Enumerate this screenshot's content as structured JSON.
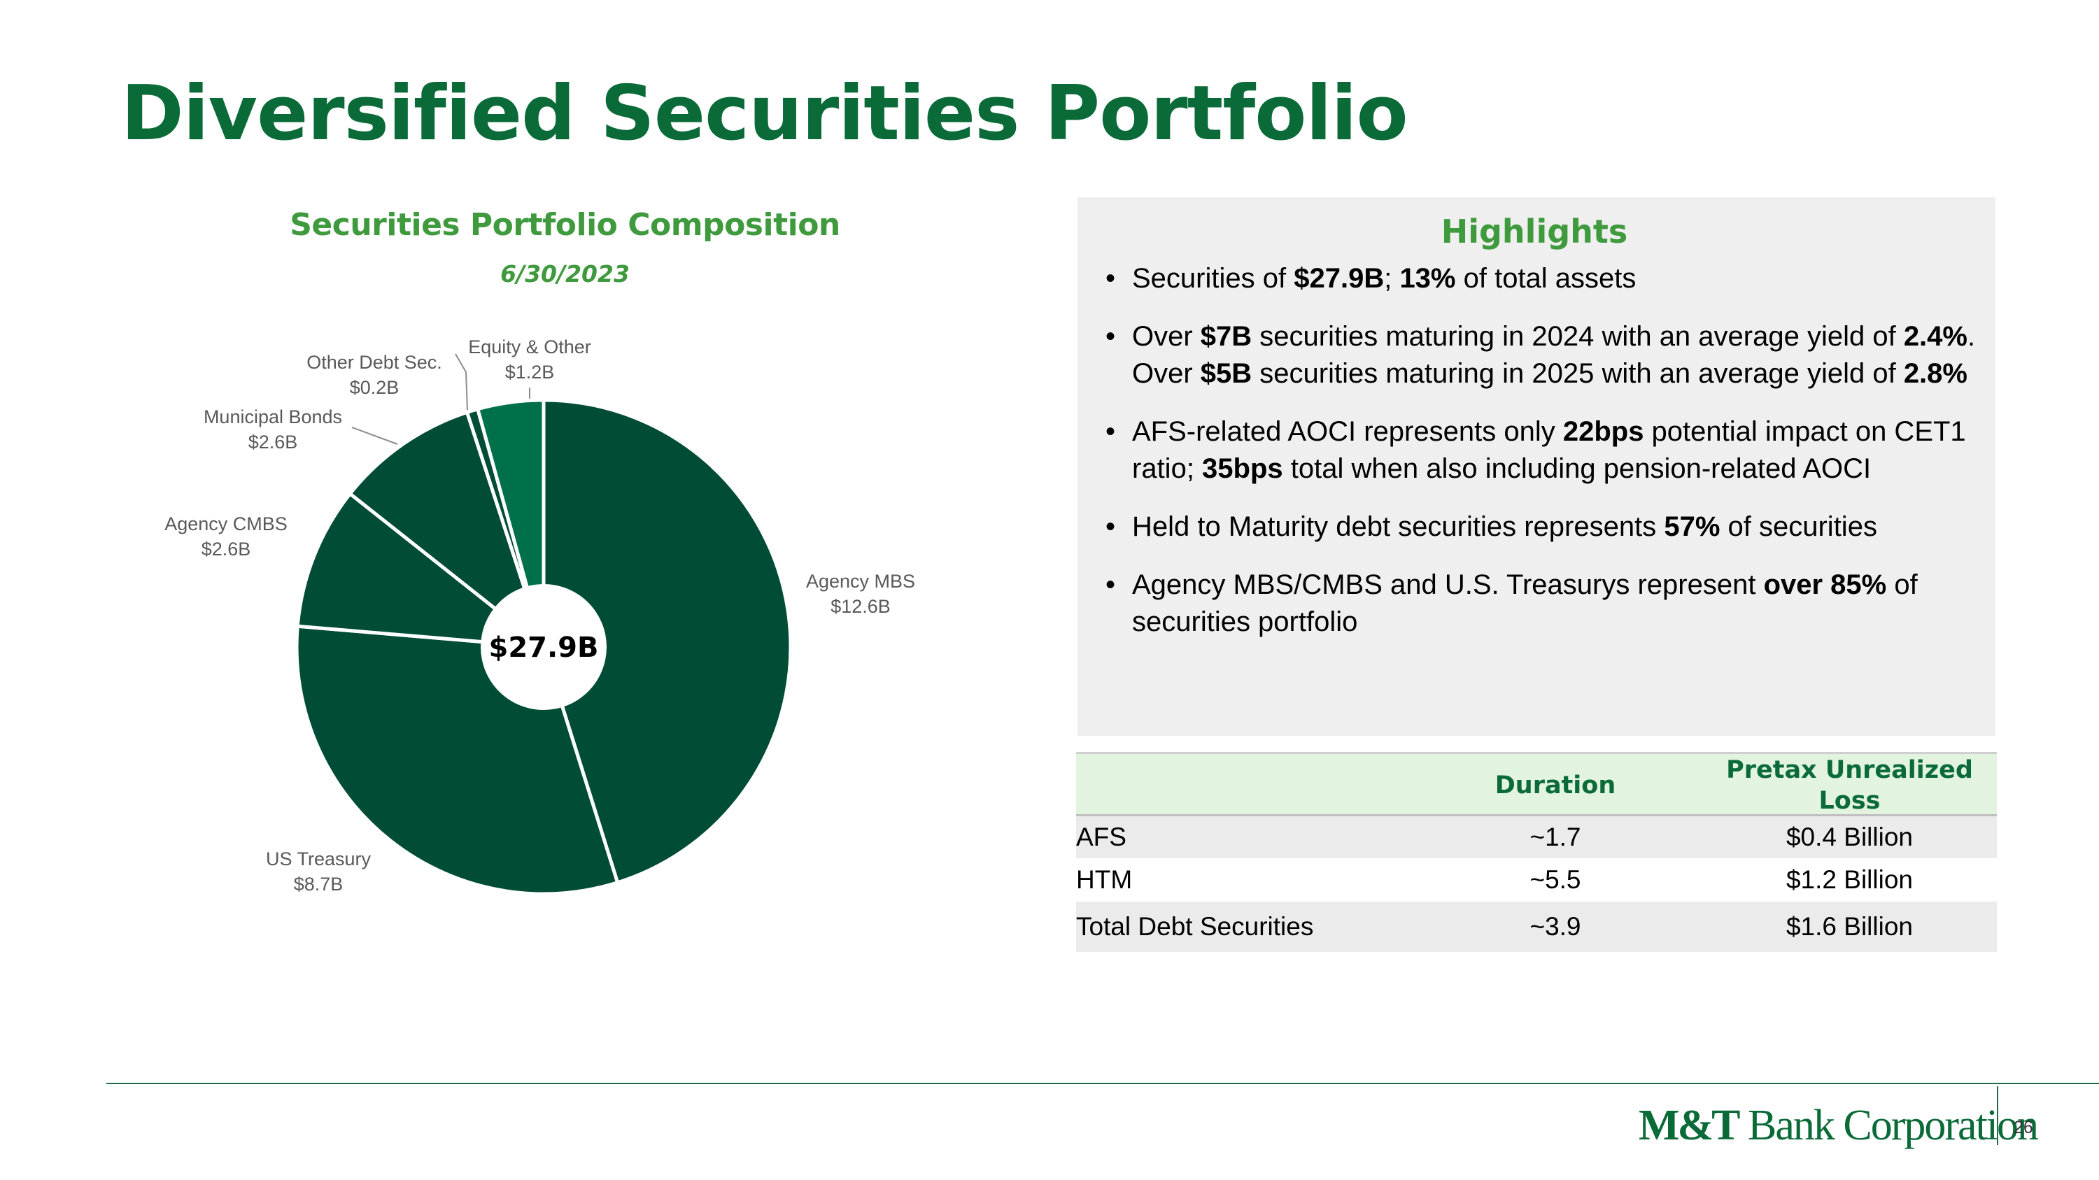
{
  "slide": {
    "title": "Diversified Securities Portfolio",
    "page_number": "26",
    "logo_text": "M&T Bank Corporation",
    "logo_bold": "M&T",
    "logo_rest": "Bank Corporation"
  },
  "chart_data": {
    "type": "pie",
    "title": "Securities Portfolio Composition",
    "subtitle": "6/30/2023",
    "center_label": "$27.9B",
    "unit": "$B",
    "slices": [
      {
        "name": "Agency MBS",
        "value": 12.6,
        "label": "$12.6B",
        "color": "#004c36"
      },
      {
        "name": "US Treasury",
        "value": 8.7,
        "label": "$8.7B",
        "color": "#004c36"
      },
      {
        "name": "Agency CMBS",
        "value": 2.6,
        "label": "$2.6B",
        "color": "#004c36"
      },
      {
        "name": "Municipal Bonds",
        "value": 2.6,
        "label": "$2.6B",
        "color": "#004c36"
      },
      {
        "name": "Other Debt Sec.",
        "value": 0.2,
        "label": "$0.2B",
        "color": "#004c36"
      },
      {
        "name": "Equity & Other",
        "value": 1.2,
        "label": "$1.2B",
        "color": "#00704a"
      }
    ]
  },
  "highlights": {
    "title": "Highlights",
    "items": [
      [
        {
          "t": "Securities of "
        },
        {
          "t": "$27.9B",
          "b": true
        },
        {
          "t": "; "
        },
        {
          "t": "13%",
          "b": true
        },
        {
          "t": " of total assets"
        }
      ],
      [
        {
          "t": "Over "
        },
        {
          "t": "$7B",
          "b": true
        },
        {
          "t": " securities maturing in 2024 with an average yield of "
        },
        {
          "t": "2.4%",
          "b": true
        },
        {
          "t": ". Over "
        },
        {
          "t": "$5B",
          "b": true
        },
        {
          "t": " securities maturing in 2025 with an average yield of "
        },
        {
          "t": "2.8%",
          "b": true
        }
      ],
      [
        {
          "t": "AFS-related AOCI represents only "
        },
        {
          "t": "22bps",
          "b": true
        },
        {
          "t": " potential impact on CET1 ratio; "
        },
        {
          "t": "35bps",
          "b": true
        },
        {
          "t": " total when also including pension-related AOCI"
        }
      ],
      [
        {
          "t": "Held to Maturity debt securities represents "
        },
        {
          "t": "57%",
          "b": true
        },
        {
          "t": " of securities"
        }
      ],
      [
        {
          "t": "Agency MBS/CMBS and U.S. Treasurys represent "
        },
        {
          "t": "over 85%",
          "b": true
        },
        {
          "t": " of securities portfolio"
        }
      ]
    ]
  },
  "table": {
    "headers": [
      "",
      "Duration",
      "Pretax Unrealized Loss"
    ],
    "rows": [
      [
        "AFS",
        "~1.7",
        "$0.4 Billion"
      ],
      [
        "HTM",
        "~5.5",
        "$1.2 Billion"
      ],
      [
        "Total Debt Securities",
        "~3.9",
        "$1.6 Billion"
      ]
    ]
  }
}
